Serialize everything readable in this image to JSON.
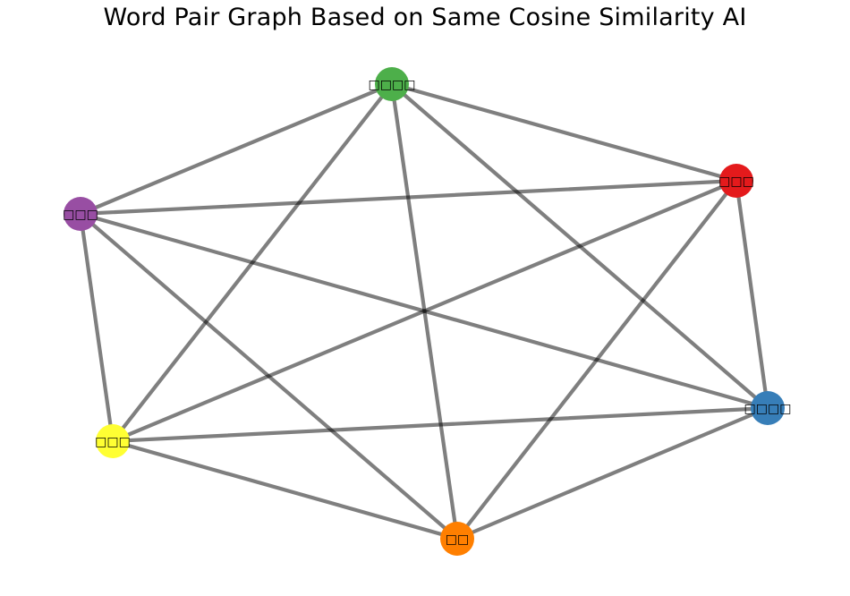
{
  "title": "Word Pair Graph Based on Same Cosine Similarity AI",
  "nodes": [
    {
      "id": "green",
      "label": "□□□□",
      "color": "#4daf4a"
    },
    {
      "id": "red",
      "label": "□□□",
      "color": "#e41a1c"
    },
    {
      "id": "purple",
      "label": "□□□",
      "color": "#984ea3"
    },
    {
      "id": "blue",
      "label": "□□□□",
      "color": "#377eb8"
    },
    {
      "id": "yellow",
      "label": "□□□",
      "color": "#ffff33"
    },
    {
      "id": "orange",
      "label": "□□",
      "color": "#ff7f00"
    }
  ],
  "edges": [
    [
      "green",
      "red"
    ],
    [
      "green",
      "purple"
    ],
    [
      "green",
      "blue"
    ],
    [
      "green",
      "yellow"
    ],
    [
      "green",
      "orange"
    ],
    [
      "red",
      "purple"
    ],
    [
      "red",
      "blue"
    ],
    [
      "red",
      "yellow"
    ],
    [
      "red",
      "orange"
    ],
    [
      "purple",
      "blue"
    ],
    [
      "purple",
      "yellow"
    ],
    [
      "purple",
      "orange"
    ],
    [
      "blue",
      "yellow"
    ],
    [
      "blue",
      "orange"
    ],
    [
      "yellow",
      "orange"
    ]
  ],
  "edge_color": "#808080"
}
